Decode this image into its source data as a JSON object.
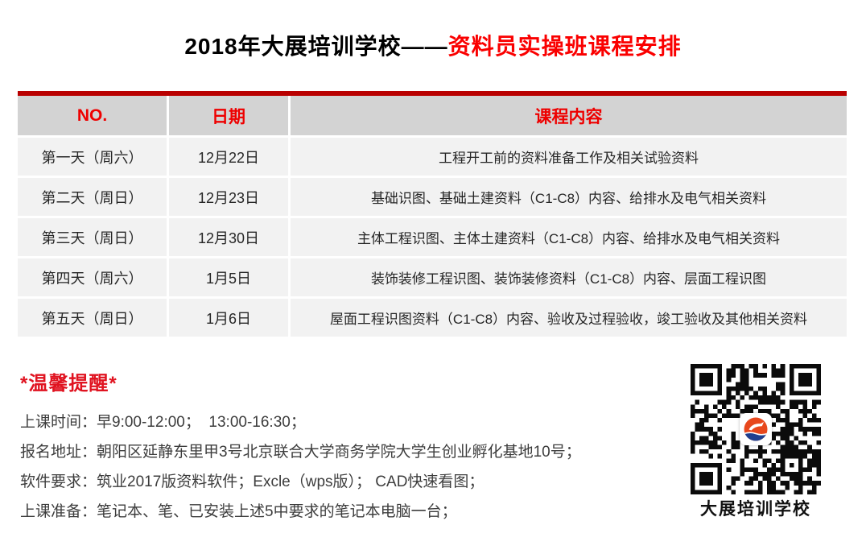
{
  "title": {
    "prefix": "2018年大展培训学校——",
    "highlight": "资料员实操班课程安排"
  },
  "table": {
    "headers": [
      "NO.",
      "日期",
      "课程内容"
    ],
    "rows": [
      {
        "no": "第一天（周六）",
        "date": "12月22日",
        "content": "工程开工前的资料准备工作及相关试验资料"
      },
      {
        "no": "第二天（周日）",
        "date": "12月23日",
        "content": "基础识图、基础土建资料（C1-C8）内容、给排水及电气相关资料"
      },
      {
        "no": "第三天（周日）",
        "date": "12月30日",
        "content": "主体工程识图、主体土建资料（C1-C8）内容、给排水及电气相关资料"
      },
      {
        "no": "第四天（周六）",
        "date": "1月5日",
        "content": "装饰装修工程识图、装饰装修资料（C1-C8）内容、层面工程识图"
      },
      {
        "no": "第五天（周日）",
        "date": "1月6日",
        "content": "屋面工程识图资料（C1-C8）内容、验收及过程验收，竣工验收及其他相关资料"
      }
    ]
  },
  "reminder": {
    "heading": "*温馨提醒*",
    "lines": [
      "上课时间：早9:00-12:00；  13:00-16:30；",
      "报名地址：朝阳区延静东里甲3号北京联合大学商务学院大学生创业孵化基地10号；",
      "软件要求：筑业2017版资料软件；Excle（wps版）； CAD快速看图；",
      "上课准备：笔记本、笔、已安装上述5中要求的笔记本电脑一台；"
    ]
  },
  "qr": {
    "label": "大展培训学校"
  },
  "colors": {
    "title_red": "#fa0000",
    "table_top_bar": "#b90000",
    "header_text_red": "#ee0000",
    "header_bg": "#d3d3d3",
    "row_bg": "#f2f2f2",
    "heading_red": "#e01320"
  }
}
